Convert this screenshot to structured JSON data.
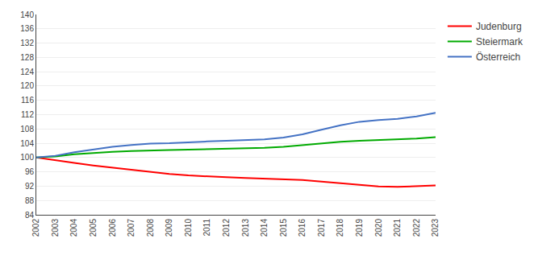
{
  "chart_data": {
    "type": "line",
    "x": [
      2002,
      2003,
      2004,
      2005,
      2006,
      2007,
      2008,
      2009,
      2010,
      2011,
      2012,
      2013,
      2014,
      2015,
      2016,
      2017,
      2018,
      2019,
      2020,
      2021,
      2022,
      2023
    ],
    "series": [
      {
        "name": "Judenburg",
        "color": "#FF0000",
        "values": [
          100.0,
          99.2,
          98.5,
          97.8,
          97.2,
          96.5,
          96.0,
          95.4,
          95.0,
          94.7,
          94.5,
          94.3,
          94.1,
          93.9,
          93.7,
          93.3,
          92.8,
          92.3,
          91.9,
          91.8,
          92.0,
          92.2
        ]
      },
      {
        "name": "Steiermark",
        "color": "#00AA00",
        "values": [
          100.0,
          100.3,
          100.9,
          101.3,
          101.6,
          101.8,
          102.0,
          102.1,
          102.2,
          102.3,
          102.4,
          102.5,
          102.7,
          103.0,
          103.5,
          104.0,
          104.4,
          104.7,
          104.9,
          105.0,
          105.3,
          105.7
        ]
      },
      {
        "name": "Österreich",
        "color": "#4472C4",
        "values": [
          100.0,
          100.5,
          101.5,
          102.3,
          103.0,
          103.5,
          103.9,
          104.0,
          104.3,
          104.5,
          104.7,
          104.9,
          105.1,
          105.6,
          106.5,
          107.8,
          109.0,
          110.0,
          110.5,
          110.8,
          111.5,
          112.5
        ]
      }
    ],
    "xlim": [
      2002,
      2023
    ],
    "xticks": [
      2002,
      2003,
      2004,
      2005,
      2006,
      2007,
      2008,
      2009,
      2010,
      2011,
      2012,
      2013,
      2014,
      2015,
      2016,
      2017,
      2018,
      2019,
      2020,
      2021,
      2022,
      2023
    ],
    "ylim": [
      84,
      140
    ],
    "yticks": [
      84,
      88,
      92,
      96,
      100,
      104,
      108,
      112,
      116,
      120,
      124,
      128,
      132,
      136,
      140
    ],
    "grid": "y",
    "legend": "right"
  }
}
